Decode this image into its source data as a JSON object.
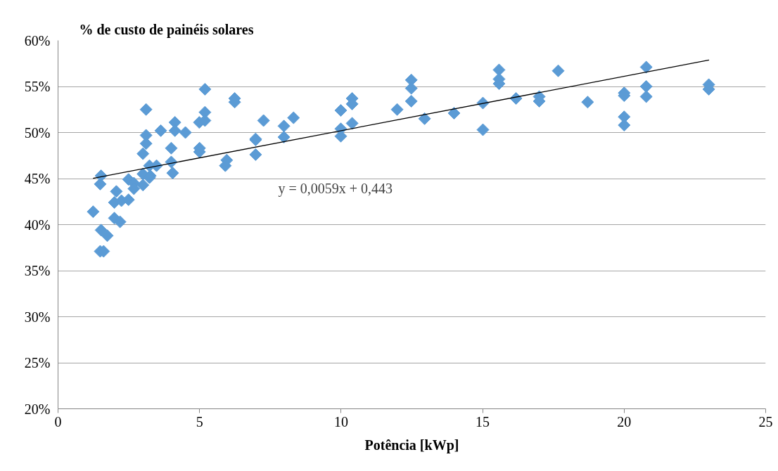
{
  "chart_data": {
    "type": "scatter",
    "title": "% de custo de painéis solares",
    "xlabel": "Potência [kWp]",
    "xlim": [
      0,
      25
    ],
    "xticks": [
      0,
      5,
      10,
      15,
      20,
      25
    ],
    "ylim": [
      20,
      60
    ],
    "yticks": [
      {
        "value": 20,
        "label": "20%"
      },
      {
        "value": 25,
        "label": "25%"
      },
      {
        "value": 30,
        "label": "30%"
      },
      {
        "value": 35,
        "label": "35%"
      },
      {
        "value": 40,
        "label": "40%"
      },
      {
        "value": 45,
        "label": "45%"
      },
      {
        "value": 50,
        "label": "50%"
      },
      {
        "value": 55,
        "label": "55%"
      },
      {
        "value": 60,
        "label": "60%"
      }
    ],
    "grid": "y",
    "marker": "diamond",
    "series": [
      {
        "color": "#5b9bd5",
        "x": [
          1.24,
          1.52,
          1.49,
          2.06,
          1.99,
          2.24,
          2.49,
          2.49,
          2.68,
          2.68,
          3.0,
          1.99,
          2.19,
          1.52,
          1.74,
          1.49,
          1.61,
          3.26,
          3.48,
          3.11,
          5.19,
          5.19,
          5.19,
          4.99,
          6.24,
          6.24,
          7.26,
          8.32,
          7.98,
          7.98,
          6.98,
          6.98,
          6.98,
          5.96,
          5.91,
          5.0,
          5.0,
          4.0,
          4.0,
          4.05,
          3.63,
          4.13,
          4.13,
          4.5,
          3.11,
          3.11,
          3.0,
          3.23,
          3.0,
          3.23,
          9.99,
          9.99,
          9.99,
          10.39,
          10.39,
          10.39,
          11.98,
          12.48,
          12.48,
          12.48,
          12.95,
          13.99,
          15.01,
          15.01,
          15.58,
          15.58,
          15.58,
          16.18,
          17.0,
          17.0,
          17.67,
          18.71,
          20.0,
          20.0,
          20.0,
          20.0,
          20.78,
          20.78,
          20.78,
          22.99,
          22.99
        ],
        "values": [
          41.4,
          45.3,
          44.4,
          43.6,
          42.4,
          42.6,
          42.7,
          44.9,
          44.5,
          43.9,
          44.3,
          40.7,
          40.3,
          39.4,
          38.8,
          37.1,
          37.1,
          45.3,
          46.4,
          52.5,
          54.7,
          52.2,
          51.3,
          51.1,
          53.7,
          53.3,
          51.3,
          51.6,
          50.7,
          49.5,
          49.3,
          49.2,
          47.6,
          47.0,
          46.4,
          48.3,
          47.9,
          48.3,
          46.8,
          45.6,
          50.2,
          51.1,
          50.2,
          50.0,
          49.7,
          48.8,
          47.7,
          46.4,
          45.5,
          45.1,
          52.4,
          50.4,
          49.6,
          53.7,
          53.1,
          51.0,
          52.5,
          55.7,
          54.8,
          53.4,
          51.5,
          52.1,
          53.2,
          50.3,
          56.8,
          55.8,
          55.3,
          53.7,
          53.9,
          53.4,
          56.7,
          53.3,
          54.3,
          54.0,
          51.7,
          50.8,
          57.1,
          55.0,
          53.9,
          55.2,
          54.7
        ]
      },
      {
        "type": "line",
        "color": "#000000",
        "marker": "none",
        "line_style": "solid",
        "x": [
          1.24,
          23
        ],
        "values": [
          45.03,
          57.87
        ]
      }
    ],
    "annotations": [
      "y = 0,0059x + 0,443"
    ]
  }
}
